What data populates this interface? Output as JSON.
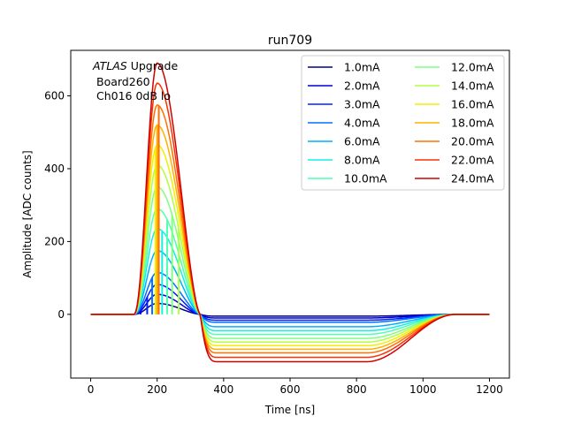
{
  "chart_data": {
    "type": "line",
    "title": "run709",
    "xlabel": "Time [ns]",
    "ylabel": "Amplitude [ADC counts]",
    "xlim": [
      -60,
      1260
    ],
    "ylim": [
      -175,
      725
    ],
    "xticks": [
      0,
      200,
      400,
      600,
      800,
      1000,
      1200
    ],
    "yticks": [
      0,
      200,
      400,
      600
    ],
    "annotation": {
      "line1_italic": "ATLAS",
      "line1_rest": " Upgrade",
      "line2": "Board260",
      "line3": "Ch016 0dB lo"
    },
    "legend": {
      "placement": "top-right",
      "columns": 2
    },
    "pulse": {
      "start_ns": 130,
      "peak_ns": 200,
      "zero_cross_ns": 330,
      "undershoot_min_ns": 600,
      "recovery_start_ns": 830,
      "end_ns": 1100,
      "x_range": [
        0,
        1200
      ]
    },
    "series": [
      {
        "name": "1.0mA",
        "color": "#00008f",
        "peak": 30,
        "undershoot": -5,
        "vline_x": null
      },
      {
        "name": "2.0mA",
        "color": "#0000d4",
        "peak": 55,
        "undershoot": -10,
        "vline_x": 150
      },
      {
        "name": "3.0mA",
        "color": "#0020ff",
        "peak": 82,
        "undershoot": -16,
        "vline_x": 170
      },
      {
        "name": "4.0mA",
        "color": "#0070ff",
        "peak": 115,
        "undershoot": -22,
        "vline_x": 185
      },
      {
        "name": "6.0mA",
        "color": "#00b0ff",
        "peak": 175,
        "undershoot": -34,
        "vline_x": 200
      },
      {
        "name": "8.0mA",
        "color": "#10f0e8",
        "peak": 235,
        "undershoot": -45,
        "vline_x": 215
      },
      {
        "name": "10.0mA",
        "color": "#50ffb0",
        "peak": 290,
        "undershoot": -55,
        "vline_x": 230
      },
      {
        "name": "12.0mA",
        "color": "#80ff80",
        "peak": 350,
        "undershoot": -66,
        "vline_x": 245
      },
      {
        "name": "14.0mA",
        "color": "#b0ff40",
        "peak": 410,
        "undershoot": -76,
        "vline_x": 265
      },
      {
        "name": "16.0mA",
        "color": "#f0f000",
        "peak": 465,
        "undershoot": -86,
        "vline_x": 195
      },
      {
        "name": "18.0mA",
        "color": "#ffb000",
        "peak": 520,
        "undershoot": -96,
        "vline_x": 200
      },
      {
        "name": "20.0mA",
        "color": "#ff7000",
        "peak": 575,
        "undershoot": -106,
        "vline_x": 205
      },
      {
        "name": "22.0mA",
        "color": "#ff3000",
        "peak": 635,
        "undershoot": -118,
        "vline_x": null
      },
      {
        "name": "24.0mA",
        "color": "#d00000",
        "peak": 690,
        "undershoot": -130,
        "vline_x": null
      }
    ]
  }
}
